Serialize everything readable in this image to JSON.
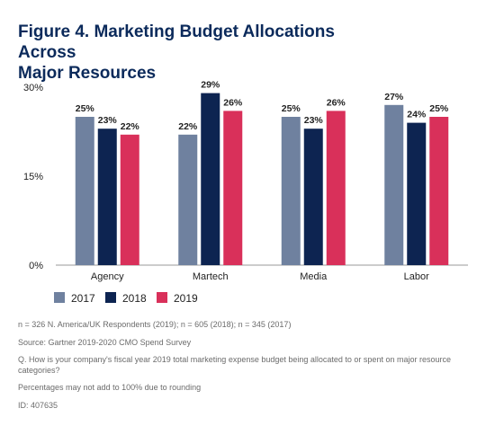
{
  "title_lines": [
    "Figure 4. Marketing Budget Allocations Across",
    "Major Resources"
  ],
  "colors": {
    "2017": "#6f819f",
    "2018": "#0d2451",
    "2019": "#d9305a",
    "text": "#222222",
    "axis": "#999999"
  },
  "chart_data": {
    "type": "bar",
    "categories": [
      "Agency",
      "Martech",
      "Media",
      "Labor"
    ],
    "series": [
      {
        "name": "2017",
        "values": [
          25,
          22,
          25,
          27
        ],
        "labels": [
          "25%",
          "22%",
          "25%",
          "27%"
        ]
      },
      {
        "name": "2018",
        "values": [
          23,
          29,
          23,
          24
        ],
        "labels": [
          "23%",
          "29%",
          "23%",
          "24%"
        ]
      },
      {
        "name": "2019",
        "values": [
          22,
          26,
          26,
          25
        ],
        "labels": [
          "22%",
          "26%",
          "26%",
          "25%"
        ]
      }
    ],
    "ylim": [
      0,
      30
    ],
    "yticks": [
      0,
      15,
      30
    ],
    "ytick_labels": [
      "0%",
      "15%",
      "30%"
    ],
    "grid": false,
    "legend_position": "bottom-left",
    "xlabel": "",
    "ylabel": ""
  },
  "notes": [
    "n = 326 N. America/UK Respondents (2019); n = 605 (2018); n = 345 (2017)",
    "Source: Gartner 2019-2020 CMO Spend Survey",
    "Q. How is your company's fiscal year 2019 total marketing expense budget being allocated to or spent on major resource categories?",
    "Percentages may not add to 100% due to rounding",
    "ID: 407635"
  ]
}
